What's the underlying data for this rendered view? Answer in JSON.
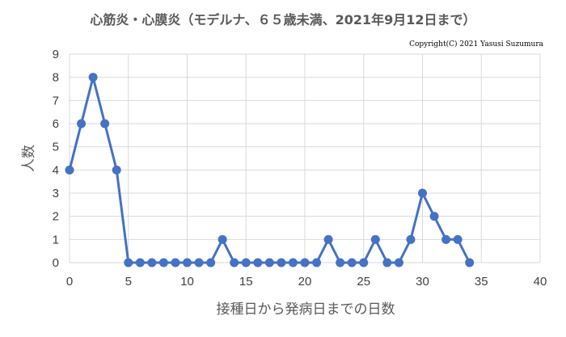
{
  "chart_data": {
    "type": "line",
    "title": "心筋炎・心膜炎（モデルナ、６５歳未満、2021年9月12日まで）",
    "copyright": "Copyright(C) 2021 Yasusi Suzumura",
    "xlabel": "接種日から発病日までの日数",
    "ylabel": "人数",
    "xlim": [
      0,
      40
    ],
    "ylim": [
      0,
      9
    ],
    "x_ticks": [
      "0",
      "5",
      "10",
      "15",
      "20",
      "25",
      "30",
      "35",
      "40"
    ],
    "y_ticks": [
      "0",
      "1",
      "2",
      "3",
      "4",
      "5",
      "6",
      "7",
      "8",
      "9"
    ],
    "grid": true,
    "legend": "none",
    "color": "#4472C4",
    "x": [
      0,
      1,
      2,
      3,
      4,
      5,
      6,
      7,
      8,
      9,
      10,
      11,
      12,
      13,
      14,
      15,
      16,
      17,
      18,
      19,
      20,
      21,
      22,
      23,
      24,
      25,
      26,
      27,
      28,
      29,
      30,
      31,
      32,
      33,
      34
    ],
    "y": [
      4,
      6,
      8,
      6,
      4,
      0,
      0,
      0,
      0,
      0,
      0,
      0,
      0,
      1,
      0,
      0,
      0,
      0,
      0,
      0,
      0,
      0,
      1,
      0,
      0,
      0,
      1,
      0,
      0,
      1,
      3,
      2,
      1,
      1,
      0
    ]
  }
}
